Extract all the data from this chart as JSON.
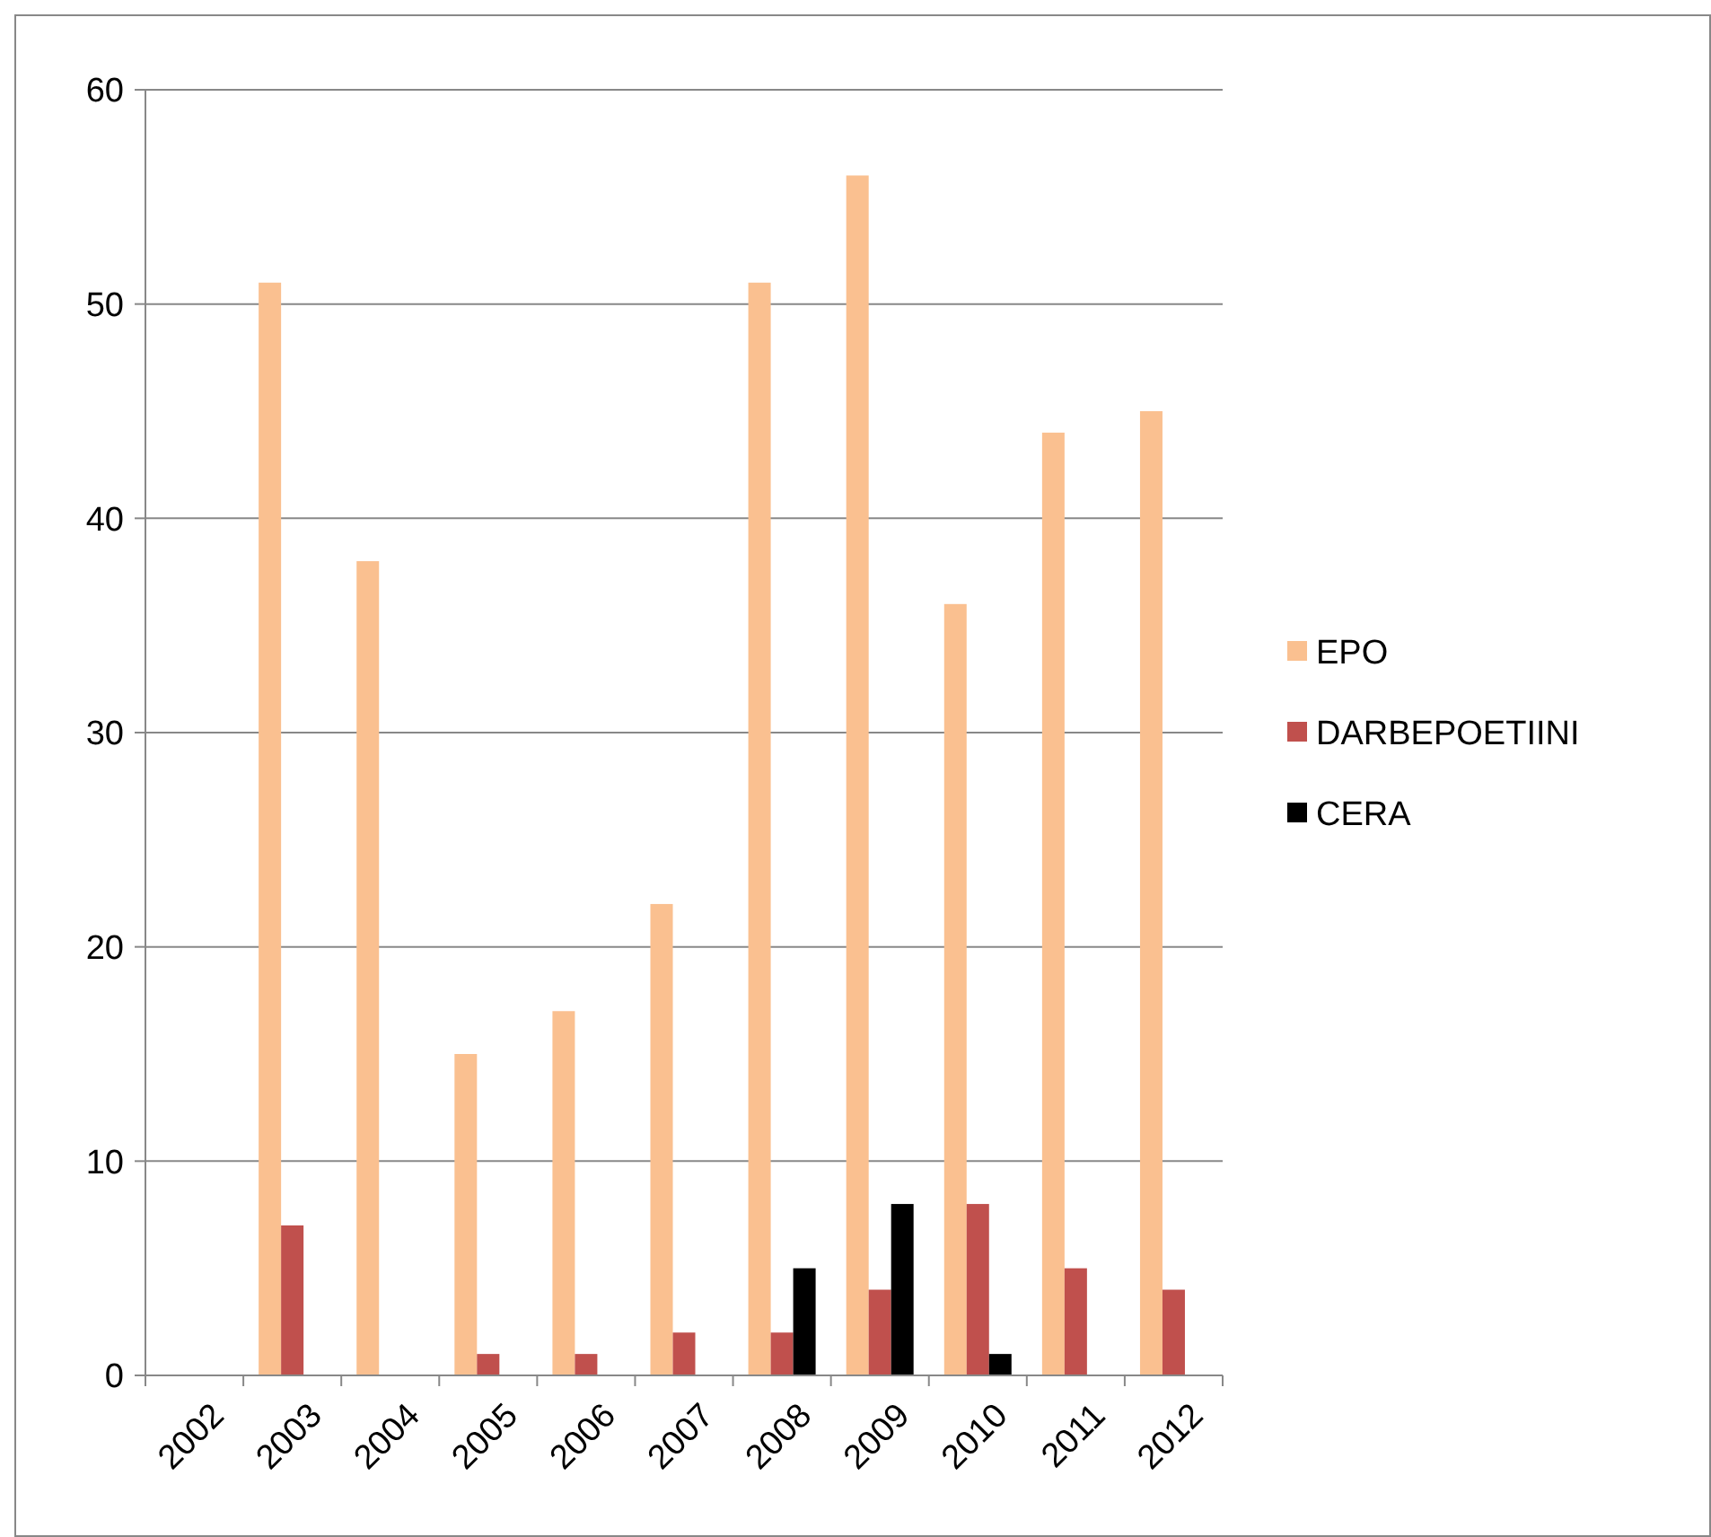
{
  "chart_data": {
    "type": "bar",
    "categories": [
      "2002",
      "2003",
      "2004",
      "2005",
      "2006",
      "2007",
      "2008",
      "2009",
      "2010",
      "2011",
      "2012"
    ],
    "series": [
      {
        "name": "EPO",
        "color": "#fac090",
        "values": [
          null,
          51,
          38,
          15,
          17,
          22,
          51,
          56,
          36,
          44,
          45
        ]
      },
      {
        "name": "DARBEPOETIINI",
        "color": "#c0504d",
        "values": [
          null,
          7,
          null,
          1,
          1,
          2,
          2,
          4,
          8,
          5,
          4
        ]
      },
      {
        "name": "CERA",
        "color": "#000000",
        "values": [
          null,
          null,
          null,
          null,
          null,
          null,
          5,
          8,
          1,
          null,
          null
        ]
      }
    ],
    "ylim": [
      0,
      60
    ],
    "yticks": [
      0,
      10,
      20,
      30,
      40,
      50,
      60
    ],
    "grid": "y",
    "legend": "right"
  }
}
